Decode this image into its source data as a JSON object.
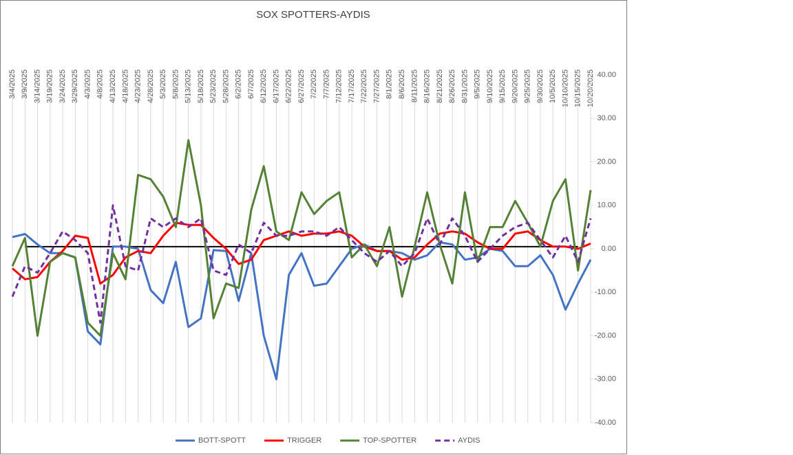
{
  "chart_data": {
    "type": "line",
    "title": "SOX SPOTTERS-AYDIS",
    "categories": [
      "3/4/2025",
      "3/9/2025",
      "3/14/2025",
      "3/19/2025",
      "3/24/2025",
      "3/29/2025",
      "4/3/2025",
      "4/8/2025",
      "4/13/2025",
      "4/18/2025",
      "4/23/2025",
      "4/28/2025",
      "5/3/2025",
      "5/8/2025",
      "5/13/2025",
      "5/18/2025",
      "5/23/2025",
      "5/28/2025",
      "6/2/2025",
      "6/7/2025",
      "6/12/2025",
      "6/17/2025",
      "6/22/2025",
      "6/27/2025",
      "7/2/2025",
      "7/7/2025",
      "7/12/2025",
      "7/17/2025",
      "7/22/2025",
      "7/27/2025",
      "8/1/2025",
      "8/6/2025",
      "8/11/2025",
      "8/16/2025",
      "8/21/2025",
      "8/26/2025",
      "8/31/2025",
      "9/5/2025",
      "9/10/2025",
      "9/15/2025",
      "9/20/2025",
      "9/25/2025",
      "9/30/2025",
      "10/5/2025",
      "10/10/2025",
      "10/15/2025",
      "10/20/2025"
    ],
    "series": [
      {
        "name": "BOTT-SPOTT",
        "color": "#4472c4",
        "dash": false,
        "values": [
          2.7,
          3.4,
          1,
          -1,
          -1,
          -2,
          -19,
          -22,
          0.5,
          0.5,
          0,
          -9.5,
          -12.5,
          -3,
          -18,
          -16,
          -0.3,
          -0.5,
          -12,
          -1,
          -20,
          -30,
          -6,
          -1,
          -8.5,
          -8,
          -4,
          0,
          1,
          -0.5,
          -0.5,
          -1,
          -2.5,
          -1.5,
          1.5,
          1,
          -2.5,
          -2,
          0,
          -0.5,
          -4,
          -4,
          -1.5,
          -6,
          -14,
          -8,
          -2.5
        ]
      },
      {
        "name": "TRIGGER",
        "color": "#ff0000",
        "dash": false,
        "values": [
          -4.5,
          -7,
          -6.5,
          -3,
          -0.5,
          3,
          2.5,
          -8,
          -6,
          -2,
          -0.5,
          -1,
          3,
          6,
          5.5,
          5.5,
          2.5,
          0,
          -3.5,
          -2.5,
          2,
          3,
          4,
          3,
          3.5,
          3.5,
          4,
          3,
          0.5,
          -0.5,
          -0.5,
          -2.5,
          -2,
          1,
          3.5,
          4,
          3.5,
          1.5,
          0,
          0,
          3.5,
          4,
          2,
          0.5,
          0.5,
          0,
          1.2
        ]
      },
      {
        "name": "TOP-SPOTTER",
        "color": "#548235",
        "dash": false,
        "values": [
          -4,
          2.5,
          -20,
          -3,
          -1,
          -2,
          -17,
          -20,
          -1,
          -7,
          17,
          16,
          12,
          5,
          25,
          10,
          -16,
          -8,
          -9,
          9,
          19,
          4,
          2,
          13,
          8,
          11,
          13,
          -2,
          1,
          -4,
          5,
          -11,
          0.5,
          13,
          1,
          -8,
          13,
          -3,
          5,
          5,
          11,
          6,
          0.5,
          11,
          16,
          -5,
          13.5
        ]
      },
      {
        "name": "AYDIS",
        "color": "#7030a0",
        "dash": true,
        "values": [
          -11,
          -4,
          -5.5,
          -1,
          4,
          2,
          -1,
          -17,
          10,
          -4,
          -5,
          7,
          5,
          7,
          5,
          7,
          -5,
          -6,
          1,
          -1,
          6,
          3,
          3,
          4,
          4,
          3,
          5,
          2,
          -1,
          -3,
          -0.5,
          -4,
          -1,
          7,
          1,
          7,
          3,
          -3,
          0,
          3,
          5,
          6,
          2,
          -2,
          3,
          -3,
          7
        ]
      }
    ],
    "reference_line": {
      "value": 0.5,
      "color": "#000000"
    },
    "ylim": [
      -40,
      40
    ],
    "yticks": [
      {
        "value": -40,
        "label": "-40.00"
      },
      {
        "value": -30,
        "label": "-30.00"
      },
      {
        "value": -20,
        "label": "-20.00"
      },
      {
        "value": -10,
        "label": "-10.00"
      },
      {
        "value": 0,
        "label": "0.00"
      },
      {
        "value": 10,
        "label": "10.00"
      },
      {
        "value": 20,
        "label": "20.00"
      },
      {
        "value": 30,
        "label": "30.00"
      },
      {
        "value": 40,
        "label": "40.00"
      }
    ],
    "grid": true,
    "legend": "bottom"
  }
}
